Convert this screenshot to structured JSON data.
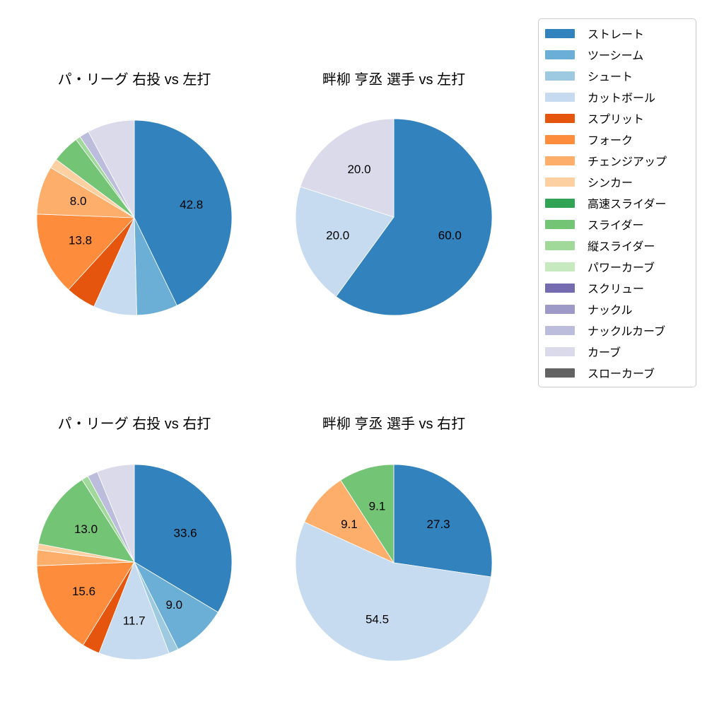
{
  "figure": {
    "background": "#ffffff",
    "value_label_color": "#000000",
    "title_color": "#000000"
  },
  "legend": {
    "items": [
      {
        "label": "ストレート",
        "color": "#3182bd"
      },
      {
        "label": "ツーシーム",
        "color": "#6baed6"
      },
      {
        "label": "シュート",
        "color": "#9ecae1"
      },
      {
        "label": "カットボール",
        "color": "#c6dbef"
      },
      {
        "label": "スプリット",
        "color": "#e6550d"
      },
      {
        "label": "フォーク",
        "color": "#fd8d3c"
      },
      {
        "label": "チェンジアップ",
        "color": "#fdae6b"
      },
      {
        "label": "シンカー",
        "color": "#fdd0a2"
      },
      {
        "label": "高速スライダー",
        "color": "#31a354"
      },
      {
        "label": "スライダー",
        "color": "#74c476"
      },
      {
        "label": "縦スライダー",
        "color": "#a1d99b"
      },
      {
        "label": "パワーカーブ",
        "color": "#c7e9c0"
      },
      {
        "label": "スクリュー",
        "color": "#756bb1"
      },
      {
        "label": "ナックル",
        "color": "#9e9ac8"
      },
      {
        "label": "ナックルカーブ",
        "color": "#bcbddc"
      },
      {
        "label": "カーブ",
        "color": "#dadaeb"
      },
      {
        "label": "スローカーブ",
        "color": "#636363"
      }
    ]
  },
  "chart_data": [
    {
      "type": "pie",
      "title": "パ・リーグ 右投 vs 左打",
      "start_angle_deg": 90,
      "direction": "clockwise",
      "unit": "percent",
      "label_distance": 0.6,
      "slices": [
        {
          "label": "ストレート",
          "value": 42.8,
          "pct_label": "42.8"
        },
        {
          "label": "ツーシーム",
          "value": 6.8,
          "pct_label": ""
        },
        {
          "label": "カットボール",
          "value": 7.2,
          "pct_label": ""
        },
        {
          "label": "スプリット",
          "value": 5.0,
          "pct_label": ""
        },
        {
          "label": "フォーク",
          "value": 13.8,
          "pct_label": "13.8"
        },
        {
          "label": "チェンジアップ",
          "value": 8.0,
          "pct_label": "8.0"
        },
        {
          "label": "シンカー",
          "value": 1.6,
          "pct_label": ""
        },
        {
          "label": "スライダー",
          "value": 4.6,
          "pct_label": ""
        },
        {
          "label": "縦スライダー",
          "value": 0.8,
          "pct_label": ""
        },
        {
          "label": "ナックルカーブ",
          "value": 1.6,
          "pct_label": ""
        },
        {
          "label": "カーブ",
          "value": 7.8,
          "pct_label": ""
        }
      ]
    },
    {
      "type": "pie",
      "title": "畔柳 亨丞 選手 vs 左打",
      "start_angle_deg": 90,
      "direction": "clockwise",
      "unit": "percent",
      "label_distance": 0.6,
      "slices": [
        {
          "label": "ストレート",
          "value": 60.0,
          "pct_label": "60.0"
        },
        {
          "label": "カットボール",
          "value": 20.0,
          "pct_label": "20.0"
        },
        {
          "label": "カーブ",
          "value": 20.0,
          "pct_label": "20.0"
        }
      ]
    },
    {
      "type": "pie",
      "title": "パ・リーグ 右投 vs 右打",
      "start_angle_deg": 90,
      "direction": "clockwise",
      "unit": "percent",
      "label_distance": 0.6,
      "slices": [
        {
          "label": "ストレート",
          "value": 33.6,
          "pct_label": "33.6"
        },
        {
          "label": "ツーシーム",
          "value": 9.0,
          "pct_label": "9.0"
        },
        {
          "label": "シュート",
          "value": 1.6,
          "pct_label": ""
        },
        {
          "label": "カットボール",
          "value": 11.7,
          "pct_label": "11.7"
        },
        {
          "label": "スプリット",
          "value": 2.9,
          "pct_label": ""
        },
        {
          "label": "フォーク",
          "value": 15.6,
          "pct_label": "15.6"
        },
        {
          "label": "チェンジアップ",
          "value": 2.6,
          "pct_label": ""
        },
        {
          "label": "シンカー",
          "value": 1.0,
          "pct_label": ""
        },
        {
          "label": "スライダー",
          "value": 13.0,
          "pct_label": "13.0"
        },
        {
          "label": "縦スライダー",
          "value": 1.1,
          "pct_label": ""
        },
        {
          "label": "ナックルカーブ",
          "value": 1.7,
          "pct_label": ""
        },
        {
          "label": "カーブ",
          "value": 6.2,
          "pct_label": ""
        }
      ]
    },
    {
      "type": "pie",
      "title": "畔柳 亨丞 選手 vs 右打",
      "start_angle_deg": 90,
      "direction": "clockwise",
      "unit": "percent",
      "label_distance": 0.6,
      "slices": [
        {
          "label": "ストレート",
          "value": 27.3,
          "pct_label": "27.3"
        },
        {
          "label": "カットボール",
          "value": 54.5,
          "pct_label": "54.5"
        },
        {
          "label": "チェンジアップ",
          "value": 9.1,
          "pct_label": "9.1"
        },
        {
          "label": "スライダー",
          "value": 9.1,
          "pct_label": "9.1"
        }
      ]
    }
  ]
}
